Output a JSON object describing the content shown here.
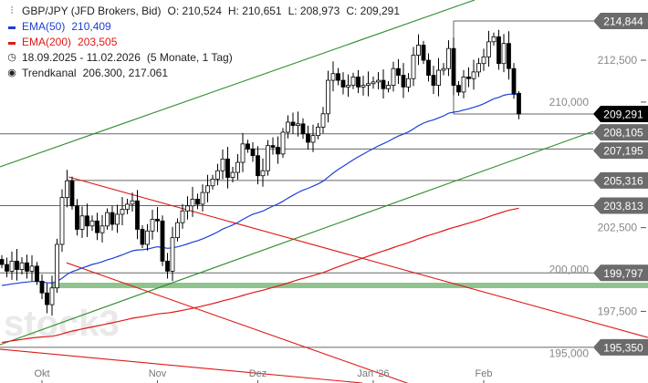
{
  "legend": {
    "symbol": "GBP/JPY (JFD Brokers, Bid)",
    "open": "O: 210,524",
    "high": "H: 210,651",
    "low": "L: 208,973",
    "close": "C: 209,291",
    "ema50_label": "EMA(50)",
    "ema50_value": "210,409",
    "ema200_label": "EMA(200)",
    "ema200_value": "203,505",
    "range": "18.09.2025 - 11.02.2026",
    "range_note": "(5 Monate, 1 Tag)",
    "trend_label": "Trendkanal",
    "trend_value": "206.300, 217.061"
  },
  "watermark": "stock3",
  "colors": {
    "ema50": "#1f3fd6",
    "ema200": "#e01818",
    "channel": "#2e8b2e",
    "resistance": "#e01818",
    "level": "#666666",
    "support_band": "#8fc48f",
    "last_price": "#000000"
  },
  "chart_data": {
    "type": "candlestick",
    "title": "GBP/JPY (JFD Brokers, Bid)",
    "period": "18.09.2025 - 11.02.2026",
    "ylim": [
      193.0,
      216.0
    ],
    "y_ticks": [
      {
        "v": 212.5,
        "label": "212,500"
      },
      {
        "v": 210.0,
        "label": "210,000"
      },
      {
        "v": 202.5,
        "label": "202,500"
      },
      {
        "v": 200.0,
        "label": "200,000"
      },
      {
        "v": 197.5,
        "label": "197,500"
      },
      {
        "v": 195.0,
        "label": "195,000"
      }
    ],
    "x_ticks": [
      {
        "bar": 8,
        "label": "Okt"
      },
      {
        "bar": 31,
        "label": "Nov"
      },
      {
        "bar": 51,
        "label": "Dez"
      },
      {
        "bar": 74,
        "label": "Jan '26"
      },
      {
        "bar": 96,
        "label": "Feb"
      }
    ],
    "closes": [
      200.3,
      199.9,
      200.5,
      200.0,
      200.4,
      199.9,
      200.2,
      199.3,
      198.6,
      197.9,
      198.9,
      201.5,
      204.3,
      205.3,
      203.8,
      202.4,
      203.2,
      202.6,
      202.9,
      202.2,
      202.6,
      203.4,
      202.7,
      203.3,
      203.6,
      203.9,
      204.1,
      202.4,
      201.5,
      202.3,
      203.0,
      202.9,
      200.5,
      199.9,
      201.9,
      202.8,
      203.5,
      203.8,
      204.2,
      203.9,
      204.6,
      205.0,
      205.4,
      205.9,
      206.6,
      205.5,
      205.8,
      206.4,
      207.5,
      207.2,
      206.8,
      205.6,
      205.9,
      207.4,
      207.3,
      206.9,
      208.2,
      208.8,
      208.6,
      208.7,
      208.1,
      207.6,
      208.0,
      208.5,
      209.3,
      211.3,
      211.7,
      211.3,
      210.9,
      211.0,
      211.5,
      210.9,
      211.0,
      211.1,
      211.2,
      211.3,
      210.8,
      211.0,
      212.0,
      211.6,
      210.9,
      211.4,
      212.8,
      213.4,
      212.5,
      211.6,
      211.0,
      211.9,
      212.0,
      213.2,
      211.0,
      210.6,
      211.5,
      211.4,
      211.8,
      212.3,
      212.7,
      213.6,
      213.9,
      212.3,
      213.5,
      212.0,
      210.5,
      209.291
    ],
    "last_candle": {
      "open": 210.524,
      "high": 210.651,
      "low": 208.973,
      "close": 209.291
    },
    "ema50": {
      "period": 50,
      "last": 210.409,
      "start": 199.0
    },
    "ema200": {
      "period": 200,
      "last": 203.505,
      "start": 195.6
    },
    "levels": [
      {
        "value": 214.844,
        "label": "214,844",
        "from_bar": 90
      },
      {
        "value": 209.291,
        "label": "209,291",
        "from_bar": 90,
        "current": true
      },
      {
        "value": 208.105,
        "label": "208,105",
        "from_bar": -1
      },
      {
        "value": 207.195,
        "label": "207,195",
        "from_bar": 48
      },
      {
        "value": 205.316,
        "label": "205,316",
        "from_bar": 13
      },
      {
        "value": 203.813,
        "label": "203,813",
        "from_bar": -1
      },
      {
        "value": 199.797,
        "label": "199,797",
        "from_bar": -1
      },
      {
        "value": 195.35,
        "label": "195,350",
        "from_bar": -1
      }
    ],
    "support_band": {
      "value": 199.05,
      "from_bar": 10
    },
    "trend_lines": [
      {
        "kind": "channel",
        "p1": [
          -0.4,
          206.13
        ],
        "p2": [
          94.2,
          216.1
        ]
      },
      {
        "kind": "channel",
        "p1": [
          -0.4,
          195.5
        ],
        "p2": [
          117.8,
          208.25
        ]
      },
      {
        "kind": "resistance",
        "p1": [
          13.3,
          205.53
        ],
        "p2": [
          128.7,
          195.94
        ]
      },
      {
        "kind": "resistance",
        "p1": [
          12.9,
          200.4
        ],
        "p2": [
          80.9,
          193.2
        ]
      },
      {
        "kind": "resistance",
        "p1": [
          -0.4,
          195.24
        ],
        "p2": [
          71.8,
          193.22
        ]
      }
    ]
  }
}
